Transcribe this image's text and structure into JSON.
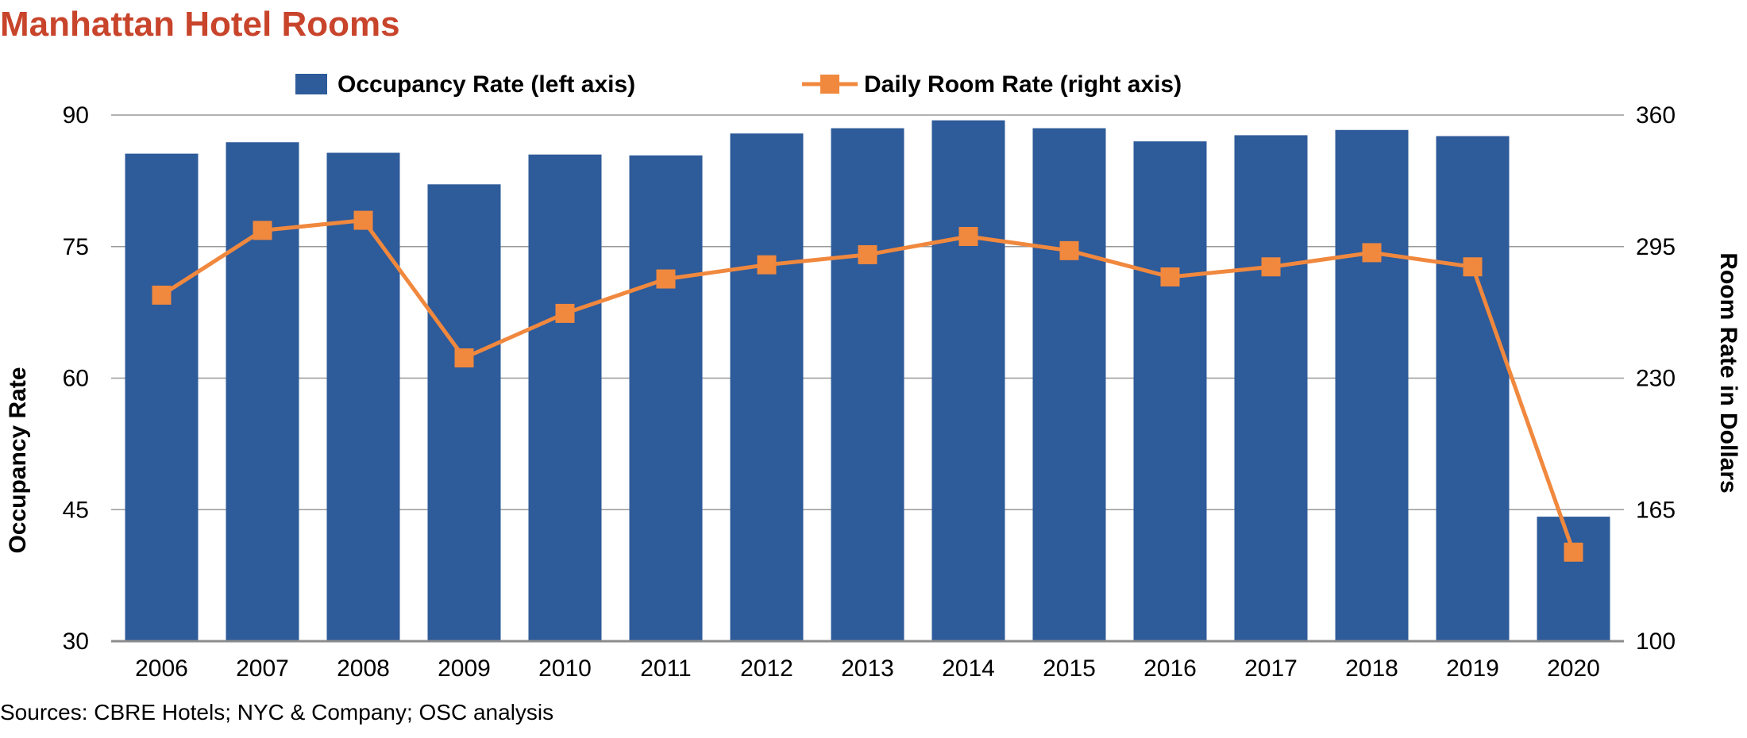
{
  "title": "Manhattan Hotel Rooms",
  "source": "Sources: CBRE Hotels; NYC & Company; OSC analysis",
  "colors": {
    "title": "#c8442b",
    "bars": "#2e5b9a",
    "line": "#f0883e",
    "grid": "#999999",
    "axis": "#8c8c8c"
  },
  "chart_data": {
    "type": "bar",
    "combo": "bar-line dual axis",
    "categories": [
      "2006",
      "2007",
      "2008",
      "2009",
      "2010",
      "2011",
      "2012",
      "2013",
      "2014",
      "2015",
      "2016",
      "2017",
      "2018",
      "2019",
      "2020"
    ],
    "series": [
      {
        "name": "Occupancy Rate (left axis)",
        "type": "bar",
        "axis": "left",
        "values": [
          85.6,
          86.9,
          85.7,
          82.1,
          85.5,
          85.4,
          87.9,
          88.5,
          89.4,
          88.5,
          87.0,
          87.7,
          88.3,
          87.6,
          44.2
        ]
      },
      {
        "name": "Daily Room Rate (right axis)",
        "type": "line",
        "axis": "right",
        "values": [
          271,
          303,
          308,
          240,
          262,
          279,
          286,
          291,
          300,
          293,
          280,
          285,
          292,
          285,
          144
        ]
      }
    ],
    "ylabel": "Occupancy Rate",
    "ylabel_right": "Room Rate in Dollars",
    "ylim": [
      30,
      90
    ],
    "yticks": [
      "30",
      "45",
      "60",
      "75",
      "90"
    ],
    "ylim_right": [
      100,
      360
    ],
    "yticks_right": [
      "100",
      "165",
      "230",
      "295",
      "360"
    ],
    "grid": true,
    "legend_position": "top-center"
  }
}
